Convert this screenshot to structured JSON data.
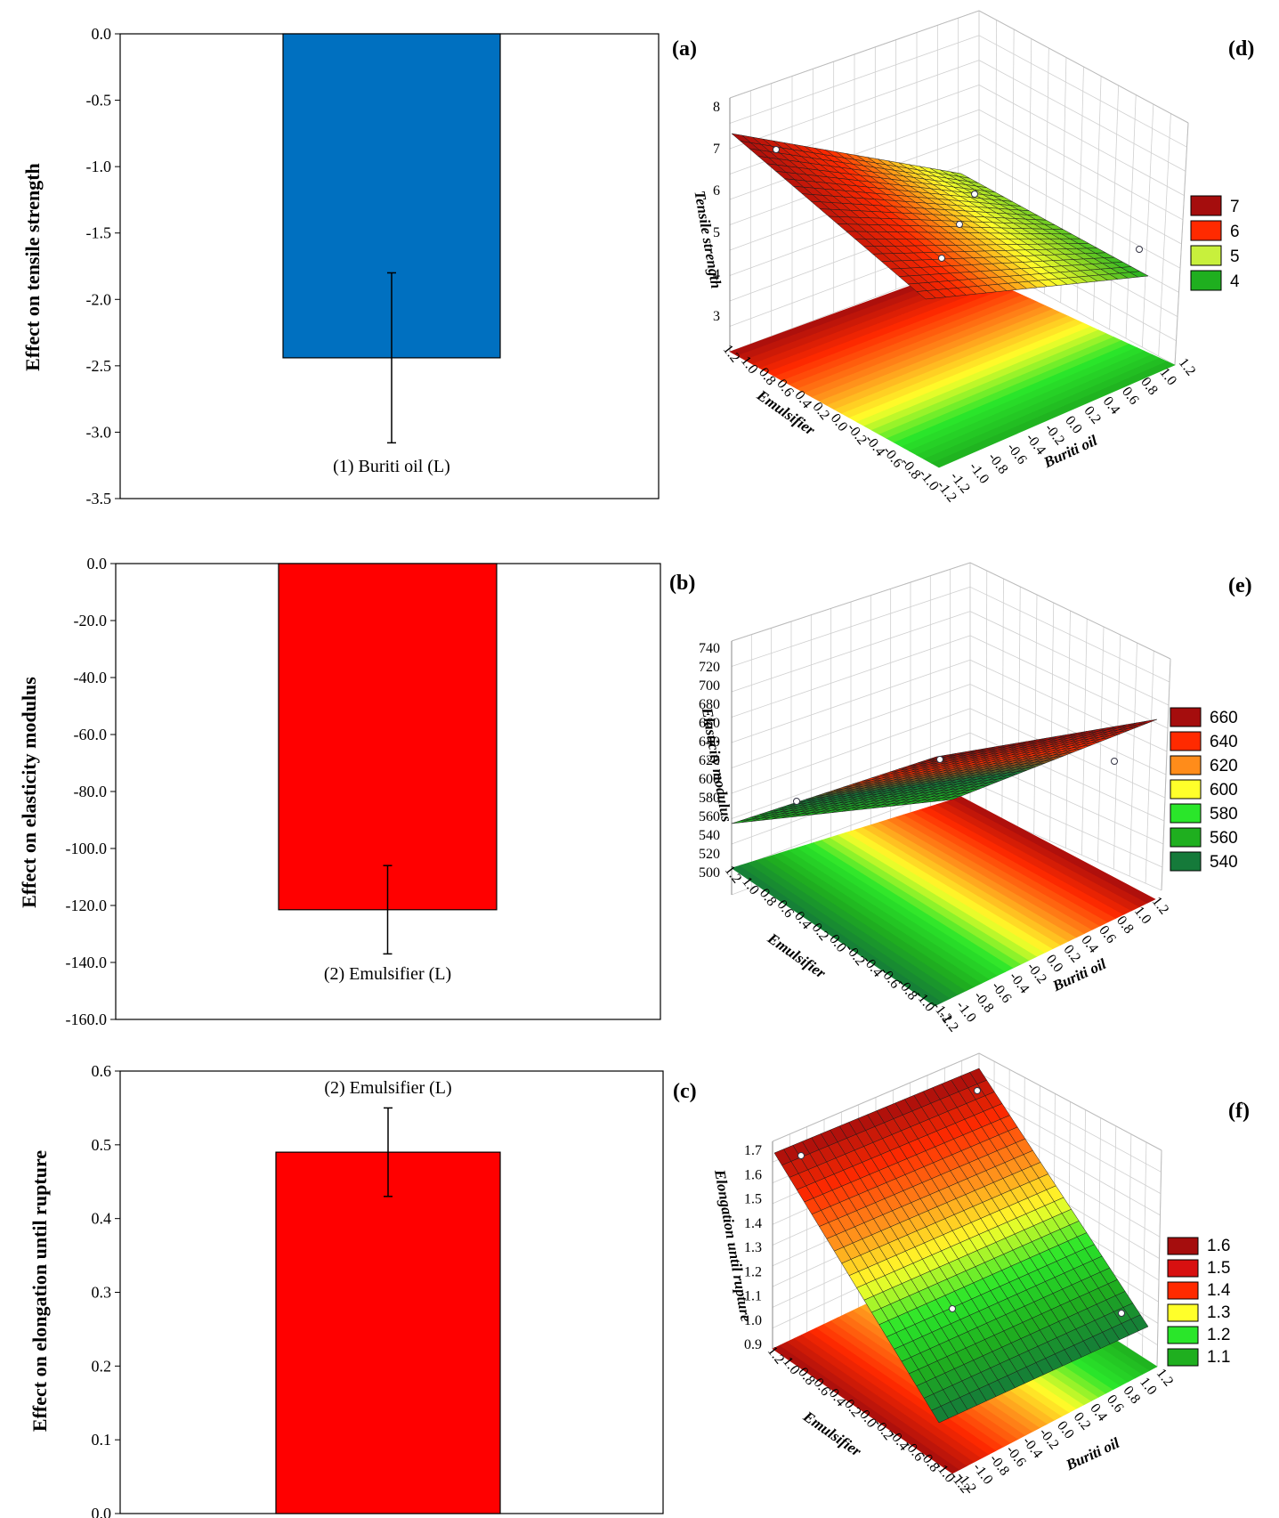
{
  "chart_data": [
    {
      "panel": "(a)",
      "type": "bar",
      "ylabel": "Effect on tensile strength",
      "categories": [
        "(1) Buriti  oil  (L)"
      ],
      "values": [
        -2.44
      ],
      "error": [
        0.64
      ],
      "ylim": [
        -3.5,
        0.0
      ],
      "yticks": [
        "0.0",
        "-0.5",
        "-1.0",
        "-1.5",
        "-2.0",
        "-2.5",
        "-3.0",
        "-3.5"
      ],
      "bar_color": "#0070C0"
    },
    {
      "panel": "(b)",
      "type": "bar",
      "ylabel": "Effect on elasticity modulus",
      "categories": [
        "(2) Emulsifier  (L)"
      ],
      "values": [
        -121.5
      ],
      "error": [
        15.5
      ],
      "ylim": [
        -160.0,
        0.0
      ],
      "yticks": [
        "0.0",
        "-20.0",
        "-40.0",
        "-60.0",
        "-80.0",
        "-100.0",
        "-120.0",
        "-140.0",
        "-160.0"
      ],
      "bar_color": "#FF0000"
    },
    {
      "panel": "(c)",
      "type": "bar",
      "ylabel": "Effect on elongation until rupture",
      "categories": [
        "(2) Emulsifier  (L)"
      ],
      "values": [
        0.49
      ],
      "error": [
        0.06
      ],
      "ylim": [
        0.0,
        0.6
      ],
      "yticks": [
        "0.6",
        "0.5",
        "0.4",
        "0.3",
        "0.2",
        "0.1",
        "0.0"
      ],
      "bar_color": "#FF0000"
    },
    {
      "panel": "(d)",
      "type": "surface",
      "zlabel": "Tensile strength",
      "xlabel": "Buriti oil",
      "ylabel": "Emulsifier",
      "zticks": [
        "8",
        "7",
        "6",
        "5",
        "4",
        "3"
      ],
      "x_ticks": [
        "-1.2",
        "-1.0",
        "-0.8",
        "-0.6",
        "-0.4",
        "-0.2",
        "0.0",
        "0.2",
        "0.4",
        "0.6",
        "0.8",
        "1.0",
        "1.2"
      ],
      "y_ticks": [
        "1.2",
        "1.0",
        "0.8",
        "0.6",
        "0.4",
        "0.2",
        "0.0",
        "-0.2",
        "-0.4",
        "-0.6",
        "-0.8",
        "-1.0",
        "-1.2"
      ],
      "legend": [
        "7",
        "6",
        "5",
        "4"
      ]
    },
    {
      "panel": "(e)",
      "type": "surface",
      "zlabel": "Elasticity modulus",
      "xlabel": "Buriti oil",
      "ylabel": "Emulsifier",
      "zticks": [
        "740",
        "720",
        "700",
        "680",
        "660",
        "640",
        "620",
        "600",
        "580",
        "560",
        "540",
        "520",
        "500"
      ],
      "x_ticks": [
        "-1.2",
        "-1.0",
        "-0.8",
        "-0.6",
        "-0.4",
        "-0.2",
        "0.0",
        "0.2",
        "0.4",
        "0.6",
        "0.8",
        "1.0",
        "1.2"
      ],
      "y_ticks": [
        "1.2",
        "1.0",
        "0.8",
        "0.6",
        "0.4",
        "0.2",
        "0.0",
        "-0.2",
        "-0.4",
        "-0.6",
        "-0.8",
        "-1.0",
        "-1.2"
      ],
      "legend": [
        "660",
        "640",
        "620",
        "600",
        "580",
        "560",
        "540"
      ]
    },
    {
      "panel": "(f)",
      "type": "surface",
      "zlabel": "Elongation until rupture",
      "xlabel": "Buriti oil",
      "ylabel": "Emulsifier",
      "zticks": [
        "1.7",
        "1.6",
        "1.5",
        "1.4",
        "1.3",
        "1.2",
        "1.1",
        "1.0",
        "0.9"
      ],
      "x_ticks": [
        "-1.2",
        "-1.0",
        "-0.8",
        "-0.6",
        "-0.4",
        "-0.2",
        "0.0",
        "0.2",
        "0.4",
        "0.6",
        "0.8",
        "1.0",
        "1.2"
      ],
      "y_ticks": [
        "1.2",
        "1.0",
        "0.8",
        "0.6",
        "0.4",
        "0.2",
        "0.0",
        "-0.2",
        "-0.4",
        "-0.6",
        "-0.8",
        "-1.0",
        "-1.2"
      ],
      "legend": [
        "1.6",
        "1.5",
        "1.4",
        "1.3",
        "1.2",
        "1.1"
      ]
    }
  ],
  "colors": {
    "dark_red": "#A50D0D",
    "red": "#FF2A00",
    "orange": "#FF8C1A",
    "yellow": "#FFFF2A",
    "light_green": "#2AE62A",
    "green": "#1FAF1F",
    "dark_green": "#157A3A"
  }
}
